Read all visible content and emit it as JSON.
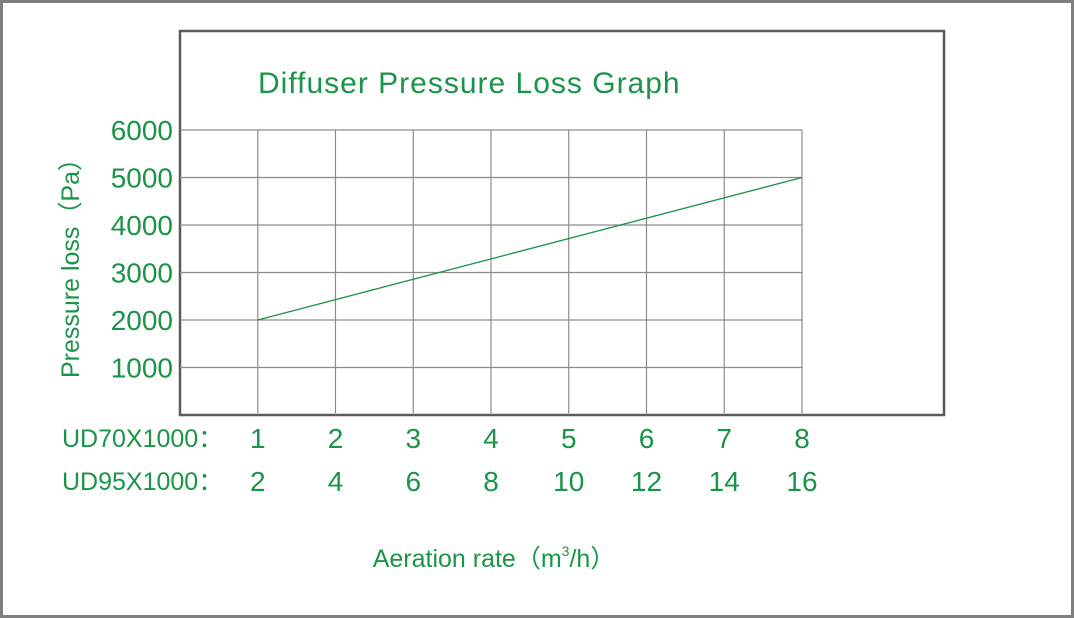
{
  "colors": {
    "accent": "#1a9448",
    "grid": "#8c8c8c",
    "frame": "#5a5a5a",
    "border": "#7f7f7f"
  },
  "chart_data": {
    "type": "line",
    "title": "Diffuser Pressure Loss Graph",
    "ylabel": "Pressure loss（Pa）",
    "xlabel": "Aeration rate（m",
    "xlabel_sup": "3",
    "xlabel_suffix": "/h）",
    "yticks": [
      "6000",
      "5000",
      "4000",
      "3000",
      "2000",
      "1000"
    ],
    "ylim": [
      0,
      6000
    ],
    "x_rows": [
      {
        "label": "UD70X1000：",
        "ticks": [
          "1",
          "2",
          "3",
          "4",
          "5",
          "6",
          "7",
          "8"
        ]
      },
      {
        "label": "UD95X1000：",
        "ticks": [
          "2",
          "4",
          "6",
          "8",
          "10",
          "12",
          "14",
          "16"
        ]
      }
    ],
    "xlim": [
      0,
      8
    ],
    "grid": true,
    "series": [
      {
        "x": [
          1,
          8
        ],
        "y": [
          2000,
          5000
        ]
      }
    ]
  }
}
